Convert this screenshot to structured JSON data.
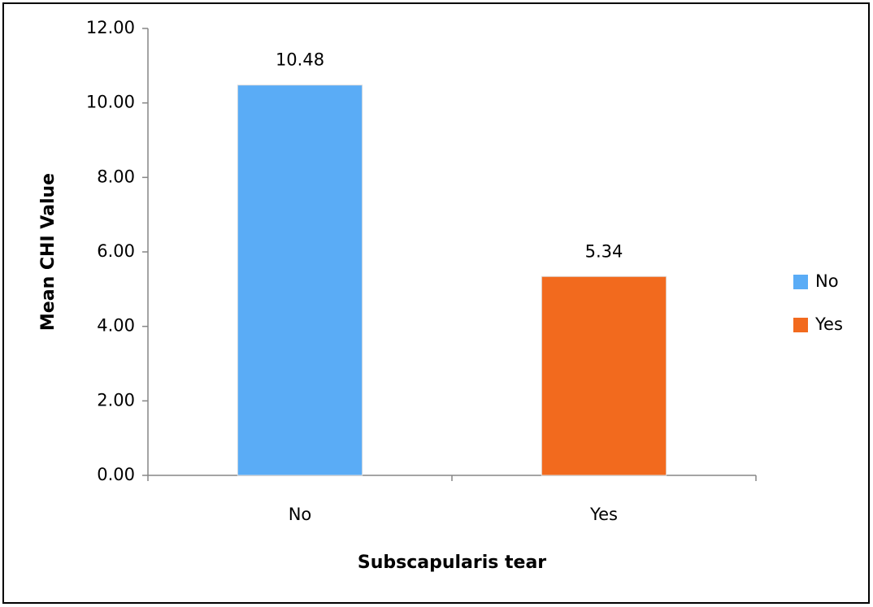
{
  "chart_data": {
    "type": "bar",
    "y_label": "Mean CHI Value",
    "x_label": "Subscapularis tear",
    "categories": [
      "No",
      "Yes"
    ],
    "values": [
      10.48,
      5.34
    ],
    "colors": [
      "#5aacf6",
      "#f26a1e"
    ],
    "ylim": [
      0,
      12
    ],
    "yticks": [
      {
        "value": 0,
        "label": "0.00"
      },
      {
        "value": 2,
        "label": "2.00"
      },
      {
        "value": 4,
        "label": "4.00"
      },
      {
        "value": 6,
        "label": "6.00"
      },
      {
        "value": 8,
        "label": "8.00"
      },
      {
        "value": 10,
        "label": "10.00"
      },
      {
        "value": 12,
        "label": "12.00"
      }
    ],
    "grid": false,
    "legend": "right"
  }
}
